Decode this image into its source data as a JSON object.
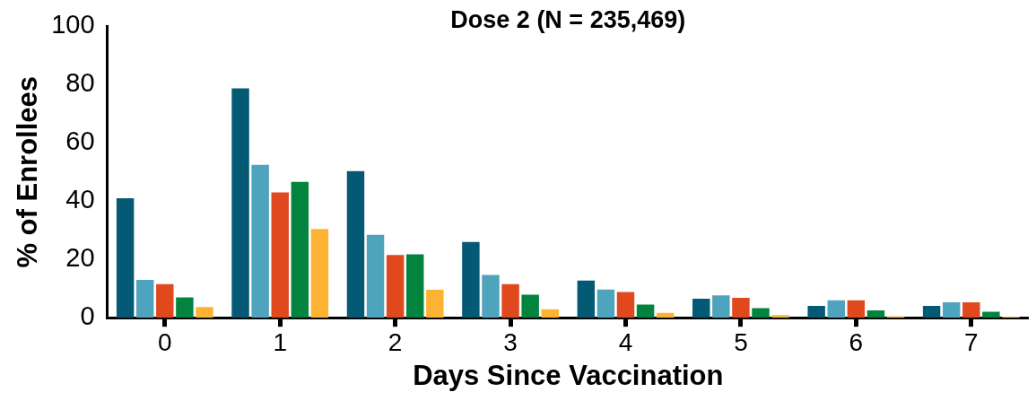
{
  "chart_data": {
    "type": "bar",
    "title": "Dose 2 (N = 235,469)",
    "xlabel": "Days Since Vaccination",
    "ylabel": "% of Enrollees",
    "categories": [
      "0",
      "1",
      "2",
      "3",
      "4",
      "5",
      "6",
      "7"
    ],
    "series": [
      {
        "color": "#045a74",
        "values": [
          41,
          78.7,
          50.3,
          26,
          12.8,
          6.5,
          4.1,
          4.1
        ]
      },
      {
        "color": "#4ea3bd",
        "values": [
          13,
          52.5,
          28.5,
          14.7,
          9.7,
          7.7,
          6,
          5.3
        ]
      },
      {
        "color": "#e0481e",
        "values": [
          11.5,
          43,
          21.5,
          11.5,
          8.8,
          6.8,
          6,
          5.3
        ]
      },
      {
        "color": "#02843e",
        "values": [
          7,
          46.6,
          21.8,
          7.9,
          4.5,
          3.3,
          2.5,
          2.1
        ]
      },
      {
        "color": "#fdb234",
        "values": [
          3.7,
          30.5,
          9.6,
          2.9,
          1.7,
          0.9,
          0.5,
          0.4
        ]
      }
    ],
    "ylim": [
      0,
      100
    ],
    "yticks": [
      0,
      20,
      40,
      60,
      80,
      100
    ],
    "grid": false,
    "legend": false
  }
}
